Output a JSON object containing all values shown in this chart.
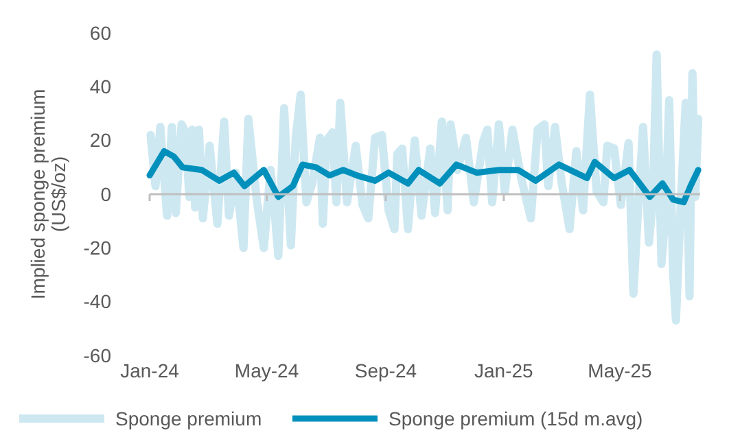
{
  "chart_data": {
    "type": "line",
    "ylabel": "Implied sponge premium (US$/oz)",
    "xlim": [
      "2024-01-01",
      "2025-07-23"
    ],
    "xticks": [
      {
        "value": "2024-01-01",
        "label": "Jan-24"
      },
      {
        "value": "2024-05-01",
        "label": "May-24"
      },
      {
        "value": "2024-09-01",
        "label": "Sep-24"
      },
      {
        "value": "2025-01-01",
        "label": "Jan-25"
      },
      {
        "value": "2025-05-01",
        "label": "May-25"
      }
    ],
    "ylim": [
      -60,
      60
    ],
    "yticks": [
      -60,
      -40,
      -20,
      0,
      20,
      40,
      60
    ],
    "legend": "bottom",
    "marker": "none",
    "line_style": "solid",
    "series": [
      {
        "name": "Sponge premium",
        "color": "#cde8f1",
        "x": [
          "2024-01-02",
          "2024-01-07",
          "2024-01-12",
          "2024-01-19",
          "2024-01-24",
          "2024-01-28",
          "2024-02-03",
          "2024-02-07",
          "2024-02-11",
          "2024-02-14",
          "2024-02-17",
          "2024-02-21",
          "2024-02-25",
          "2024-03-03",
          "2024-03-11",
          "2024-03-18",
          "2024-03-23",
          "2024-03-30",
          "2024-04-07",
          "2024-04-12",
          "2024-04-21",
          "2024-04-28",
          "2024-05-05",
          "2024-05-09",
          "2024-05-13",
          "2024-05-19",
          "2024-05-23",
          "2024-05-26",
          "2024-05-31",
          "2024-06-05",
          "2024-06-11",
          "2024-06-17",
          "2024-06-25",
          "2024-06-28",
          "2024-07-02",
          "2024-07-08",
          "2024-07-12",
          "2024-07-16",
          "2024-07-23",
          "2024-08-01",
          "2024-08-08",
          "2024-08-14",
          "2024-08-21",
          "2024-08-28",
          "2024-09-04",
          "2024-09-10",
          "2024-09-13",
          "2024-09-18",
          "2024-09-24",
          "2024-10-01",
          "2024-10-08",
          "2024-10-17",
          "2024-10-22",
          "2024-10-29",
          "2024-11-04",
          "2024-11-07",
          "2024-11-14",
          "2024-11-23",
          "2024-12-01",
          "2024-12-11",
          "2024-12-15",
          "2024-12-20",
          "2024-12-27",
          "2025-01-02",
          "2025-01-10",
          "2025-01-19",
          "2025-01-29",
          "2025-02-05",
          "2025-02-12",
          "2025-02-16",
          "2025-02-23",
          "2025-03-02",
          "2025-03-10",
          "2025-03-17",
          "2025-03-24",
          "2025-03-31",
          "2025-04-07",
          "2025-04-14",
          "2025-04-18",
          "2025-04-25",
          "2025-05-02",
          "2025-05-10",
          "2025-05-15",
          "2025-05-20",
          "2025-05-25",
          "2025-05-31",
          "2025-06-04",
          "2025-06-08",
          "2025-06-13",
          "2025-06-17",
          "2025-06-21",
          "2025-06-25",
          "2025-06-28",
          "2025-07-03",
          "2025-07-08",
          "2025-07-12",
          "2025-07-15",
          "2025-07-18",
          "2025-07-21"
        ],
        "values": [
          22,
          3,
          25,
          -8,
          25,
          -7,
          26,
          23,
          -1,
          24,
          -5,
          24,
          -9,
          18,
          -11,
          27,
          -8,
          8,
          -20,
          28,
          -3,
          -20,
          9,
          -6,
          -23,
          32,
          1,
          -19,
          21,
          37,
          -3,
          4,
          21,
          -11,
          20,
          23,
          -3,
          34,
          -3,
          18,
          -4,
          -9,
          21,
          22,
          -6,
          -13,
          15,
          17,
          -13,
          20,
          -8,
          17,
          -7,
          27,
          -6,
          26,
          9,
          21,
          -3,
          20,
          24,
          -3,
          26,
          1,
          24,
          6,
          -9,
          24,
          26,
          3,
          25,
          4,
          -13,
          16,
          -6,
          37,
          1,
          -3,
          18,
          17,
          -4,
          19,
          -37,
          -4,
          25,
          -18,
          -3,
          52,
          -26,
          -8,
          35,
          -29,
          -47,
          -3,
          34,
          -38,
          45,
          -1,
          28
        ]
      },
      {
        "name": "Sponge premium (15d m.avg)",
        "color": "#0090bb",
        "x": [
          "2024-01-01",
          "2024-01-16",
          "2024-01-26",
          "2024-02-04",
          "2024-02-24",
          "2024-03-13",
          "2024-03-28",
          "2024-04-08",
          "2024-04-28",
          "2024-05-13",
          "2024-05-28",
          "2024-06-07",
          "2024-06-21",
          "2024-07-05",
          "2024-07-19",
          "2024-08-02",
          "2024-08-21",
          "2024-09-04",
          "2024-09-24",
          "2024-10-05",
          "2024-10-27",
          "2024-11-13",
          "2024-12-04",
          "2024-12-27",
          "2025-01-16",
          "2025-02-03",
          "2025-02-27",
          "2025-03-28",
          "2025-04-05",
          "2025-04-25",
          "2025-05-11",
          "2025-06-01",
          "2025-06-14",
          "2025-06-25",
          "2025-07-06",
          "2025-07-13",
          "2025-07-21"
        ],
        "values": [
          7,
          16,
          14,
          10,
          9,
          5,
          8,
          3,
          9,
          -1,
          3,
          11,
          10,
          7,
          9,
          7,
          5,
          8,
          4,
          9,
          4,
          11,
          8,
          9,
          9,
          5,
          11,
          6,
          12,
          6,
          9,
          -1,
          4,
          -2,
          -3,
          3,
          9
        ]
      }
    ]
  }
}
